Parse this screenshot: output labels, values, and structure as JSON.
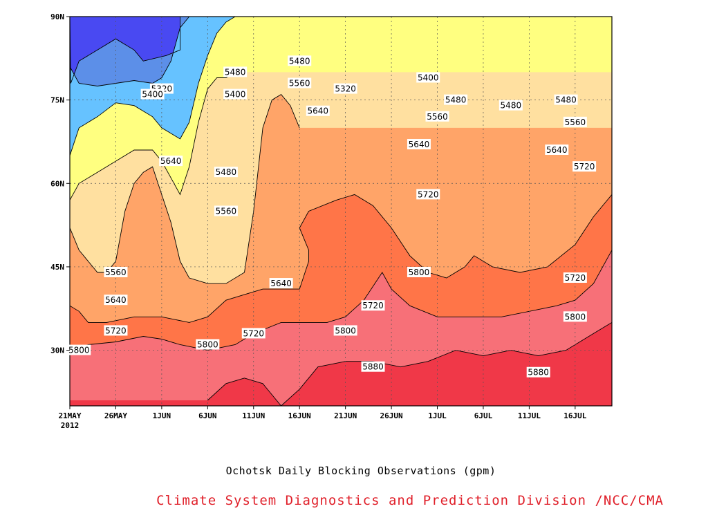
{
  "chart_data": {
    "type": "heatmap",
    "subtype": "filled-contour-time-latitude",
    "title": "Ochotsk Daily Blocking Observations (gpm)",
    "credit": "Climate System Diagnostics and Prediction Division /NCC/CMA",
    "x_ticks": [
      "21MAY",
      "26MAY",
      "1JUN",
      "6JUN",
      "11JUN",
      "16JUN",
      "21JUN",
      "26JUN",
      "1JUL",
      "6JUL",
      "11JUL",
      "16JUL"
    ],
    "x_year_label": "2012",
    "x_range_days": [
      0,
      59
    ],
    "y_ticks": [
      "90N",
      "75N",
      "60N",
      "45N",
      "30N"
    ],
    "y_range_lat": [
      20,
      90
    ],
    "grid": true,
    "levels": [
      5320,
      5400,
      5480,
      5560,
      5640,
      5720,
      5800,
      5880
    ],
    "colors": [
      "#4949f2",
      "#5c8fe8",
      "#66c2ff",
      "#ffff80",
      "#ffe0a0",
      "#ffa468",
      "#ff7548",
      "#f77078",
      "#f03848"
    ],
    "contours": [
      {
        "level": 5320,
        "points": [
          [
            0.1,
            78
          ],
          [
            1,
            82
          ],
          [
            3,
            84
          ],
          [
            5,
            86
          ],
          [
            7,
            84
          ],
          [
            8,
            82
          ],
          [
            10.5,
            83
          ],
          [
            12,
            84
          ],
          [
            12,
            90
          ],
          [
            0,
            90
          ]
        ]
      },
      {
        "level": 5400,
        "points": [
          [
            0,
            81
          ],
          [
            1,
            78
          ],
          [
            3,
            77.5
          ],
          [
            5,
            78
          ],
          [
            7,
            78.5
          ],
          [
            9,
            78
          ],
          [
            10,
            79
          ],
          [
            11,
            82
          ],
          [
            12,
            88
          ],
          [
            13,
            90
          ]
        ]
      },
      {
        "level": 5480,
        "points": [
          [
            0,
            65
          ],
          [
            1,
            70
          ],
          [
            3,
            72
          ],
          [
            5,
            74.5
          ],
          [
            7,
            74
          ],
          [
            9,
            72
          ],
          [
            10,
            70
          ],
          [
            11,
            69
          ],
          [
            12,
            68
          ],
          [
            13,
            71
          ],
          [
            14,
            78
          ],
          [
            15,
            83
          ],
          [
            16,
            87
          ],
          [
            17,
            89
          ],
          [
            18,
            90
          ]
        ]
      },
      {
        "level": 5560,
        "points": [
          [
            0,
            57
          ],
          [
            1,
            60
          ],
          [
            3,
            62
          ],
          [
            5,
            64
          ],
          [
            7,
            66
          ],
          [
            9,
            66
          ],
          [
            10,
            64
          ],
          [
            11,
            61
          ],
          [
            12,
            58
          ],
          [
            13,
            63
          ],
          [
            14,
            71
          ],
          [
            15,
            77
          ],
          [
            16,
            79
          ],
          [
            17,
            79
          ],
          [
            18,
            80
          ]
        ]
      },
      {
        "level": 5640,
        "points": [
          [
            0,
            52
          ],
          [
            1,
            48
          ],
          [
            3,
            44
          ],
          [
            4,
            44
          ],
          [
            5,
            46
          ],
          [
            6,
            55
          ],
          [
            7,
            60
          ],
          [
            8,
            62
          ],
          [
            9,
            63
          ],
          [
            10,
            58
          ],
          [
            11,
            53
          ],
          [
            12,
            46
          ],
          [
            13,
            43
          ],
          [
            15,
            42
          ],
          [
            17,
            42
          ],
          [
            19,
            44
          ],
          [
            20,
            55
          ],
          [
            21,
            70
          ],
          [
            22,
            75
          ],
          [
            23,
            76
          ],
          [
            24,
            74
          ],
          [
            25,
            70
          ]
        ]
      },
      {
        "level": 5720,
        "points": [
          [
            0,
            38
          ],
          [
            1,
            37
          ],
          [
            2,
            35
          ],
          [
            4,
            35
          ],
          [
            7,
            36
          ],
          [
            10,
            36
          ],
          [
            13,
            35
          ],
          [
            15,
            36
          ],
          [
            17,
            39
          ],
          [
            19,
            40
          ],
          [
            21,
            41
          ],
          [
            23,
            41
          ],
          [
            25,
            41
          ],
          [
            26,
            46
          ],
          [
            26,
            48
          ],
          [
            25,
            52
          ],
          [
            26,
            55
          ],
          [
            29,
            57
          ],
          [
            31,
            58
          ],
          [
            33,
            56
          ],
          [
            35,
            52
          ],
          [
            37,
            47
          ],
          [
            39,
            44
          ],
          [
            41,
            43
          ],
          [
            43,
            45
          ],
          [
            44,
            47
          ],
          [
            46,
            45
          ],
          [
            49,
            44
          ],
          [
            52,
            45
          ],
          [
            55,
            49
          ],
          [
            57,
            54
          ],
          [
            59,
            58
          ]
        ]
      },
      {
        "level": 5800,
        "points": [
          [
            0,
            30
          ],
          [
            2,
            31
          ],
          [
            5,
            31.5
          ],
          [
            8,
            32.5
          ],
          [
            10,
            32
          ],
          [
            12,
            31
          ],
          [
            15,
            30
          ],
          [
            18,
            31
          ],
          [
            20,
            33
          ],
          [
            23,
            35
          ],
          [
            26,
            35
          ],
          [
            28,
            35
          ],
          [
            30,
            36
          ],
          [
            32,
            39
          ],
          [
            34,
            44
          ],
          [
            35,
            41
          ],
          [
            37,
            38
          ],
          [
            40,
            36
          ],
          [
            44,
            36
          ],
          [
            47,
            36
          ],
          [
            50,
            37
          ],
          [
            53,
            38
          ],
          [
            55,
            39
          ],
          [
            57,
            42
          ],
          [
            59,
            48
          ]
        ]
      },
      {
        "level": 5880,
        "points": [
          [
            15,
            21
          ],
          [
            17,
            24
          ],
          [
            19,
            25
          ],
          [
            21,
            24
          ],
          [
            22,
            22
          ],
          [
            23,
            20
          ],
          [
            25,
            23
          ],
          [
            27,
            27
          ],
          [
            30,
            28
          ],
          [
            33,
            28
          ],
          [
            36,
            27
          ],
          [
            39,
            28
          ],
          [
            42,
            30
          ],
          [
            45,
            29
          ],
          [
            48,
            30
          ],
          [
            51,
            29
          ],
          [
            54,
            30
          ],
          [
            57,
            33
          ],
          [
            59,
            35
          ]
        ]
      }
    ],
    "contour_labels": [
      {
        "text": "5320",
        "x": 10,
        "y": 77
      },
      {
        "text": "5400",
        "x": 9,
        "y": 76
      },
      {
        "text": "5480",
        "x": 18,
        "y": 80
      },
      {
        "text": "5400",
        "x": 18,
        "y": 76
      },
      {
        "text": "5480",
        "x": 25,
        "y": 82
      },
      {
        "text": "5560",
        "x": 25,
        "y": 78
      },
      {
        "text": "5320",
        "x": 30,
        "y": 77
      },
      {
        "text": "5400",
        "x": 39,
        "y": 79
      },
      {
        "text": "5480",
        "x": 42,
        "y": 75
      },
      {
        "text": "5480",
        "x": 48,
        "y": 74
      },
      {
        "text": "5480",
        "x": 54,
        "y": 75
      },
      {
        "text": "5560",
        "x": 40,
        "y": 72
      },
      {
        "text": "5560",
        "x": 55,
        "y": 71
      },
      {
        "text": "5640",
        "x": 27,
        "y": 73
      },
      {
        "text": "5640",
        "x": 38,
        "y": 67
      },
      {
        "text": "5640",
        "x": 53,
        "y": 66
      },
      {
        "text": "5640",
        "x": 11,
        "y": 64
      },
      {
        "text": "5720",
        "x": 56,
        "y": 63
      },
      {
        "text": "5480",
        "x": 17,
        "y": 62
      },
      {
        "text": "5560",
        "x": 17,
        "y": 55
      },
      {
        "text": "5720",
        "x": 39,
        "y": 58
      },
      {
        "text": "5560",
        "x": 5,
        "y": 44
      },
      {
        "text": "5640",
        "x": 5,
        "y": 39
      },
      {
        "text": "5640",
        "x": 23,
        "y": 42
      },
      {
        "text": "5720",
        "x": 33,
        "y": 38
      },
      {
        "text": "5800",
        "x": 38,
        "y": 44
      },
      {
        "text": "5720",
        "x": 55,
        "y": 43
      },
      {
        "text": "5800",
        "x": 55,
        "y": 36
      },
      {
        "text": "5720",
        "x": 5,
        "y": 33.5
      },
      {
        "text": "5720",
        "x": 20,
        "y": 33
      },
      {
        "text": "5800",
        "x": 30,
        "y": 33.5
      },
      {
        "text": "5800",
        "x": 1,
        "y": 30
      },
      {
        "text": "5800",
        "x": 15,
        "y": 31
      },
      {
        "text": "5880",
        "x": 33,
        "y": 27
      },
      {
        "text": "5880",
        "x": 51,
        "y": 26
      }
    ]
  }
}
